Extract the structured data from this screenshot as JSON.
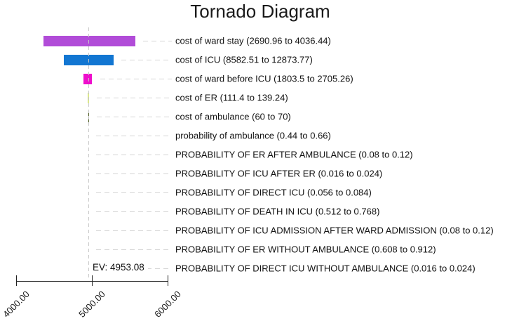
{
  "title": "Tornado Diagram",
  "ev_label": "EV: 4953.08",
  "chart_data": {
    "type": "bar",
    "subtype": "tornado",
    "title": "Tornado Diagram",
    "orientation": "horizontal",
    "ev": 4953.08,
    "xlim": [
      4000,
      6000
    ],
    "x_tick_values": [
      4000,
      5000,
      6000
    ],
    "x_tick_labels": [
      "4000.00",
      "5000.00",
      "6000.00"
    ],
    "grid": false,
    "legend": "none",
    "bars": [
      {
        "label": "cost of ward stay (2690.96 to 4036.44)",
        "param_range": [
          2690.96,
          4036.44
        ],
        "ev_range": [
          4363,
          5572
        ],
        "color": "#b14cd8"
      },
      {
        "label": "cost of ICU (8582.51 to 12873.77)",
        "param_range": [
          8582.51,
          12873.77
        ],
        "ev_range": [
          4633,
          5284
        ],
        "color": "#1276d2"
      },
      {
        "label": "cost of ward before ICU (1803.5 to 2705.26)",
        "param_range": [
          1803.5,
          2705.26
        ],
        "ev_range": [
          4893,
          5005
        ],
        "color": "#ee0ecc"
      },
      {
        "label": "cost of ER (111.4 to 139.24)",
        "param_range": [
          111.4,
          139.24
        ],
        "ev_range": [
          4940,
          4963
        ],
        "color": "#dce98a"
      },
      {
        "label": "cost of ambulance (60 to 70)",
        "param_range": [
          60,
          70
        ],
        "ev_range": [
          4949,
          4958
        ],
        "color": "#4f5d23"
      },
      {
        "label": "probability of ambulance (0.44 to 0.66)",
        "param_range": [
          0.44,
          0.66
        ],
        "ev_range": [
          4953.08,
          4953.08
        ],
        "color": null
      },
      {
        "label": "PROBABILITY OF ER AFTER AMBULANCE (0.08 to 0.12)",
        "param_range": [
          0.08,
          0.12
        ],
        "ev_range": [
          4953.08,
          4953.08
        ],
        "color": null
      },
      {
        "label": "PROBABILITY OF ICU AFTER ER (0.016 to 0.024)",
        "param_range": [
          0.016,
          0.024
        ],
        "ev_range": [
          4953.08,
          4953.08
        ],
        "color": null
      },
      {
        "label": "PROBABILITY OF DIRECT ICU (0.056 to 0.084)",
        "param_range": [
          0.056,
          0.084
        ],
        "ev_range": [
          4953.08,
          4953.08
        ],
        "color": null
      },
      {
        "label": "PROBABILITY OF DEATH IN ICU (0.512 to 0.768)",
        "param_range": [
          0.512,
          0.768
        ],
        "ev_range": [
          4953.08,
          4953.08
        ],
        "color": null
      },
      {
        "label": "PROBABILITY OF ICU ADMISSION AFTER WARD ADMISSION (0.08 to 0.12)",
        "param_range": [
          0.08,
          0.12
        ],
        "ev_range": [
          4953.08,
          4953.08
        ],
        "color": null
      },
      {
        "label": "PROBABILITY OF ER WITHOUT AMBULANCE (0.608 to 0.912)",
        "param_range": [
          0.608,
          0.912
        ],
        "ev_range": [
          4953.08,
          4953.08
        ],
        "color": null
      },
      {
        "label": "PROBABILITY OF DIRECT ICU WITHOUT AMBULANCE (0.016 to 0.024)",
        "param_range": [
          0.016,
          0.024
        ],
        "ev_range": [
          4953.08,
          4953.08
        ],
        "color": null
      }
    ]
  }
}
